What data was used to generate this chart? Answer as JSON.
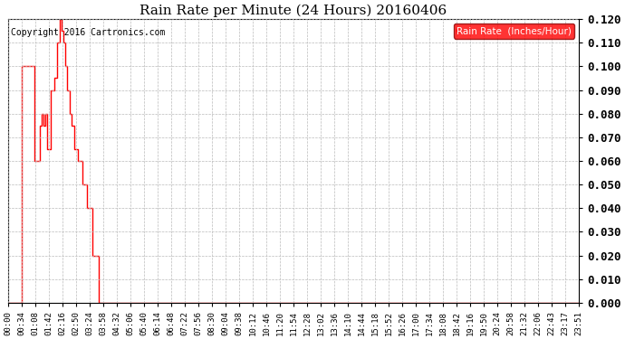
{
  "title": "Rain Rate per Minute (24 Hours) 20160406",
  "copyright": "Copyright 2016 Cartronics.com",
  "legend_label": "Rain Rate  (Inches/Hour)",
  "background_color": "#ffffff",
  "plot_bg_color": "#ffffff",
  "grid_color": "#bbbbbb",
  "line_color": "#ff0000",
  "ylim": [
    0.0,
    0.12
  ],
  "yticks": [
    0.0,
    0.01,
    0.02,
    0.03,
    0.04,
    0.05,
    0.06,
    0.07,
    0.08,
    0.09,
    0.1,
    0.11,
    0.12
  ],
  "xtick_labels": [
    "00:00",
    "00:34",
    "01:08",
    "01:42",
    "02:16",
    "02:50",
    "03:24",
    "03:58",
    "04:32",
    "05:06",
    "05:40",
    "06:14",
    "06:48",
    "07:22",
    "07:56",
    "08:30",
    "09:04",
    "09:38",
    "10:12",
    "10:46",
    "11:20",
    "11:54",
    "12:28",
    "13:02",
    "13:36",
    "14:10",
    "14:44",
    "15:18",
    "15:52",
    "16:26",
    "17:00",
    "17:34",
    "18:08",
    "18:42",
    "19:16",
    "19:50",
    "20:24",
    "20:58",
    "21:32",
    "22:06",
    "22:43",
    "23:17",
    "23:51"
  ],
  "time_series": [
    [
      0,
      0.0
    ],
    [
      33,
      0.0
    ],
    [
      34,
      0.1
    ],
    [
      67,
      0.1
    ],
    [
      68,
      0.06
    ],
    [
      80,
      0.06
    ],
    [
      81,
      0.075
    ],
    [
      84,
      0.075
    ],
    [
      85,
      0.08
    ],
    [
      89,
      0.08
    ],
    [
      90,
      0.075
    ],
    [
      94,
      0.075
    ],
    [
      95,
      0.08
    ],
    [
      99,
      0.08
    ],
    [
      100,
      0.065
    ],
    [
      107,
      0.065
    ],
    [
      108,
      0.09
    ],
    [
      116,
      0.09
    ],
    [
      117,
      0.095
    ],
    [
      124,
      0.095
    ],
    [
      125,
      0.11
    ],
    [
      131,
      0.11
    ],
    [
      132,
      0.12
    ],
    [
      135,
      0.12
    ],
    [
      136,
      0.115
    ],
    [
      139,
      0.115
    ],
    [
      140,
      0.11
    ],
    [
      144,
      0.11
    ],
    [
      145,
      0.1
    ],
    [
      149,
      0.1
    ],
    [
      150,
      0.09
    ],
    [
      154,
      0.09
    ],
    [
      155,
      0.08
    ],
    [
      159,
      0.08
    ],
    [
      160,
      0.075
    ],
    [
      167,
      0.075
    ],
    [
      168,
      0.065
    ],
    [
      175,
      0.065
    ],
    [
      176,
      0.06
    ],
    [
      188,
      0.06
    ],
    [
      189,
      0.05
    ],
    [
      198,
      0.05
    ],
    [
      199,
      0.04
    ],
    [
      212,
      0.04
    ],
    [
      213,
      0.02
    ],
    [
      228,
      0.02
    ],
    [
      229,
      0.0
    ],
    [
      1440,
      0.0
    ]
  ]
}
